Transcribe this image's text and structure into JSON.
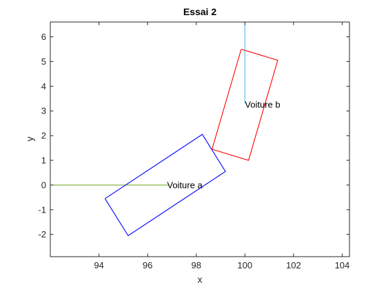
{
  "chart_data": {
    "type": "line",
    "title": "Essai 2",
    "xlabel": "x",
    "ylabel": "y",
    "xlim": [
      92.0,
      104.3
    ],
    "ylim": [
      -2.9,
      6.6
    ],
    "xticks": [
      94,
      96,
      98,
      100,
      102,
      104
    ],
    "yticks": [
      -2,
      -1,
      0,
      1,
      2,
      3,
      4,
      5,
      6
    ],
    "xtick_labels": [
      "94",
      "96",
      "98",
      "100",
      "102",
      "104"
    ],
    "ytick_labels": [
      "-2",
      "-1",
      "0",
      "1",
      "2",
      "3",
      "4",
      "5",
      "6"
    ],
    "grid": false,
    "series": [
      {
        "id": "trajectory-a",
        "color": "#77ac30",
        "x": [
          92.0,
          96.9
        ],
        "y": [
          0.0,
          0.0
        ]
      },
      {
        "id": "vehicle-a",
        "color": "#0000ff",
        "x": [
          94.25,
          98.25,
          99.2,
          95.2,
          94.25
        ],
        "y": [
          -0.55,
          2.05,
          0.55,
          -2.05,
          -0.55
        ]
      },
      {
        "id": "trajectory-b",
        "color": "#4dbeee",
        "x": [
          100.0,
          100.0
        ],
        "y": [
          6.6,
          3.3
        ]
      },
      {
        "id": "vehicle-b",
        "color": "#ff0000",
        "x": [
          99.85,
          101.35,
          100.15,
          98.65,
          99.85
        ],
        "y": [
          5.5,
          5.05,
          1.0,
          1.45,
          5.5
        ]
      }
    ],
    "annotations": [
      {
        "text": "Voiture a",
        "x": 96.8,
        "y": 0.0
      },
      {
        "text": "Voiture b",
        "x": 100.0,
        "y": 3.25
      }
    ]
  }
}
